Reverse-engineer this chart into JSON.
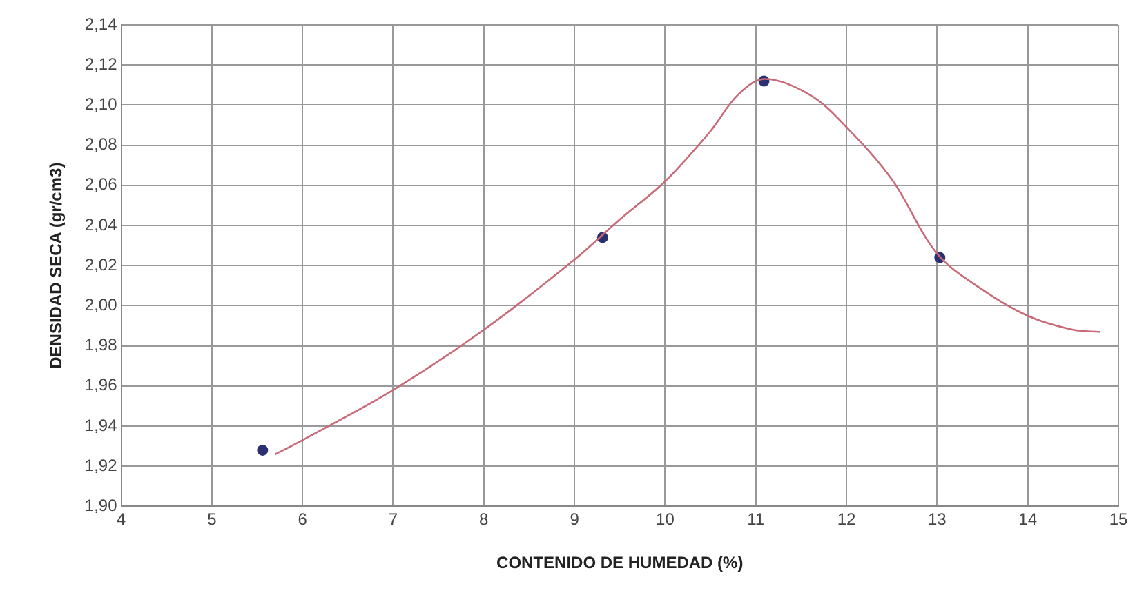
{
  "chart_data": {
    "type": "scatter",
    "xlabel": "CONTENIDO DE HUMEDAD (%)",
    "ylabel": "DENSIDAD SECA (gr/cm3)",
    "series": [
      {
        "type": "line",
        "color": "#c86a78",
        "marker": "none",
        "x": [
          5.7,
          6,
          7,
          8,
          9,
          9.5,
          10,
          10.5,
          10.8,
          11.1,
          11.6,
          12,
          12.5,
          13,
          13.5,
          14,
          14.5,
          14.8
        ],
        "values": [
          1.926,
          1.933,
          1.958,
          1.988,
          2.023,
          2.043,
          2.062,
          2.087,
          2.105,
          2.113,
          2.105,
          2.089,
          2.063,
          2.026,
          2.008,
          1.995,
          1.988,
          1.987
        ]
      },
      {
        "color": "#2b3070",
        "marker": "circle",
        "x": [
          5.56,
          9.31,
          11.09,
          13.03
        ],
        "values": [
          1.928,
          2.034,
          2.112,
          2.024
        ]
      }
    ],
    "xlim": [
      4,
      15
    ],
    "xticks": [
      4,
      5,
      6,
      7,
      8,
      9,
      10,
      11,
      12,
      13,
      14,
      15
    ],
    "ylim": [
      1.9,
      2.14
    ],
    "yticks": [
      {
        "value": 1.9,
        "label": "1,90"
      },
      {
        "value": 1.92,
        "label": "1,92"
      },
      {
        "value": 1.94,
        "label": "1,94"
      },
      {
        "value": 1.96,
        "label": "1,96"
      },
      {
        "value": 1.98,
        "label": "1,98"
      },
      {
        "value": 2.0,
        "label": "2,00"
      },
      {
        "value": 2.02,
        "label": "2,02"
      },
      {
        "value": 2.04,
        "label": "2,04"
      },
      {
        "value": 2.06,
        "label": "2,06"
      },
      {
        "value": 2.08,
        "label": "2,08"
      },
      {
        "value": 2.1,
        "label": "2,10"
      },
      {
        "value": 2.12,
        "label": "2,12"
      },
      {
        "value": 2.14,
        "label": "2,14"
      }
    ],
    "grid": true,
    "legend": false
  }
}
